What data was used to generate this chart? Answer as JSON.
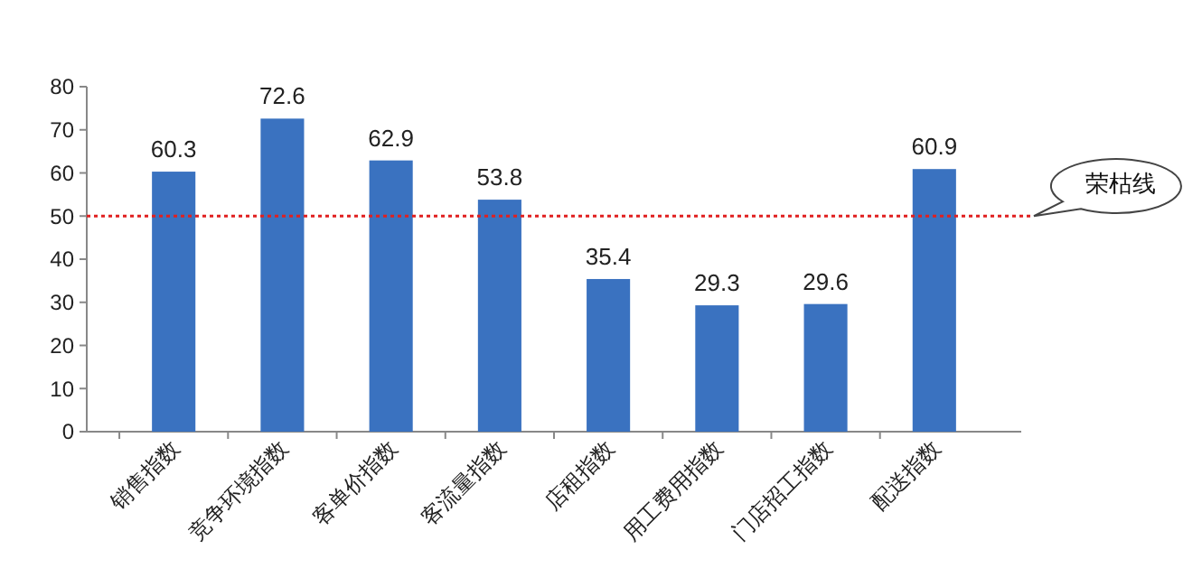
{
  "chart_data": {
    "type": "bar",
    "categories": [
      "销售指数",
      "竞争环境指数",
      "客单价指数",
      "客流量指数",
      "店租指数",
      "用工费用指数",
      "门店招工指数",
      "配送指数"
    ],
    "values": [
      60.3,
      72.6,
      62.9,
      53.8,
      35.4,
      29.3,
      29.6,
      60.9
    ],
    "color": "#3a72c0",
    "data_labels": true,
    "ylim": [
      0,
      80
    ],
    "yticks": [
      0,
      10,
      20,
      30,
      40,
      50,
      60,
      70,
      80
    ],
    "grid": false,
    "ref_lines": [
      {
        "axis": "y",
        "value": 50,
        "label": "荣枯线",
        "color": "#e02020",
        "line_style": "dotted"
      }
    ]
  }
}
